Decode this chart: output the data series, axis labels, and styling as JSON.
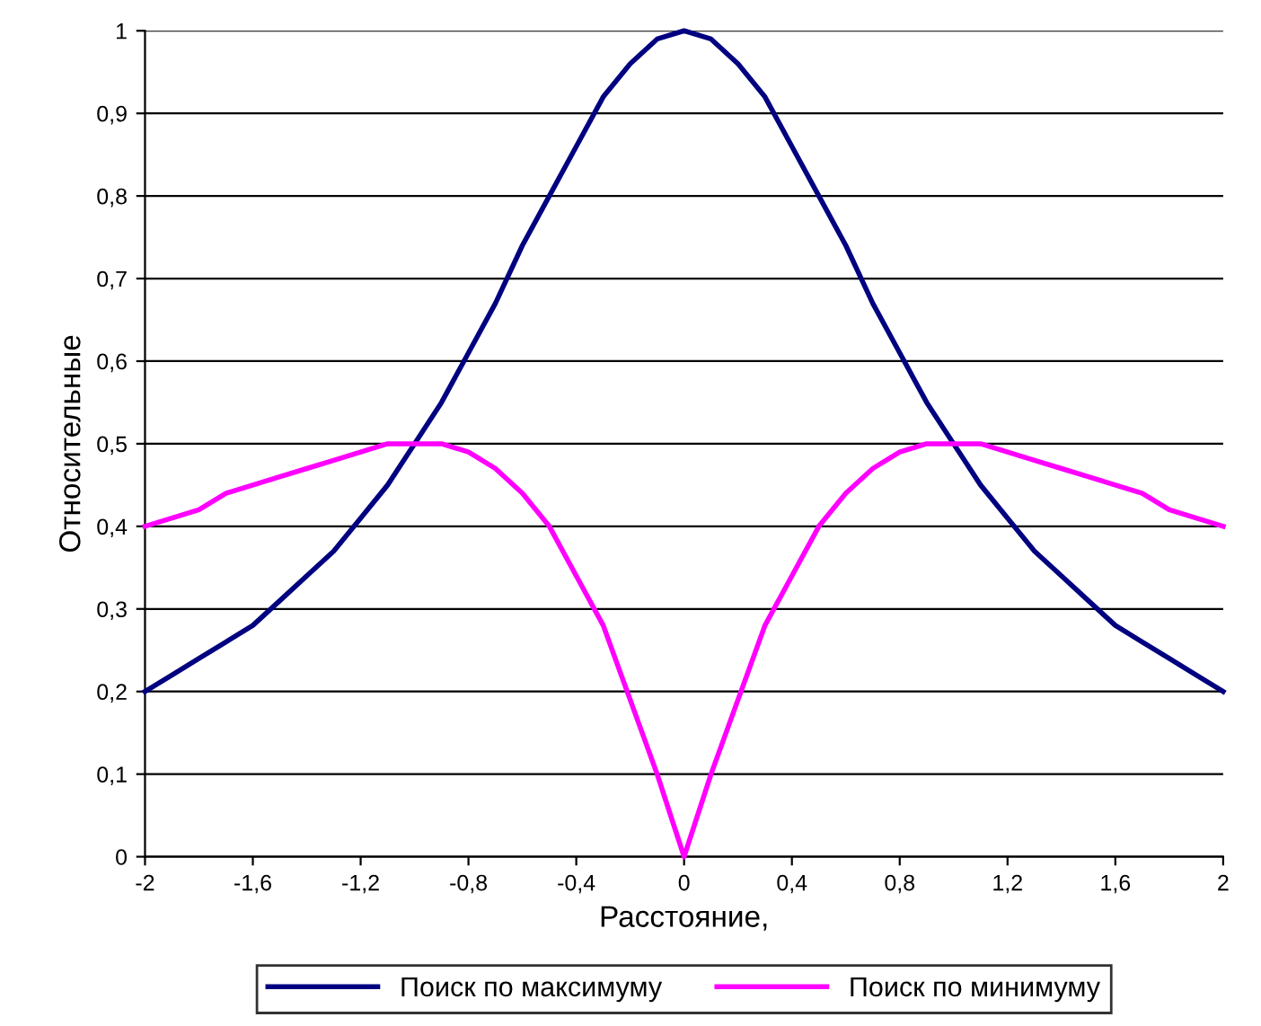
{
  "chart_data": {
    "type": "line",
    "xlabel": "Расстояние,",
    "ylabel": "Относительные",
    "x": [
      -2,
      -1.9,
      -1.8,
      -1.7,
      -1.6,
      -1.5,
      -1.4,
      -1.3,
      -1.2,
      -1.1,
      -1,
      -0.9,
      -0.8,
      -0.7,
      -0.6,
      -0.5,
      -0.4,
      -0.3,
      -0.2,
      -0.1,
      0,
      0.1,
      0.2,
      0.3,
      0.4,
      0.5,
      0.6,
      0.7,
      0.8,
      0.9,
      1,
      1.1,
      1.2,
      1.3,
      1.4,
      1.5,
      1.6,
      1.7,
      1.8,
      1.9,
      2
    ],
    "series": [
      {
        "name": "Поиск по максимуму",
        "color": "#000080",
        "values": [
          0.2,
          0.22,
          0.24,
          0.26,
          0.28,
          0.31,
          0.34,
          0.37,
          0.41,
          0.45,
          0.5,
          0.55,
          0.61,
          0.67,
          0.74,
          0.8,
          0.86,
          0.92,
          0.96,
          0.99,
          1,
          0.99,
          0.96,
          0.92,
          0.86,
          0.8,
          0.74,
          0.67,
          0.61,
          0.55,
          0.5,
          0.45,
          0.41,
          0.37,
          0.34,
          0.31,
          0.28,
          0.26,
          0.24,
          0.22,
          0.2
        ]
      },
      {
        "name": "Поиск по минимуму",
        "color": "#ff00ff",
        "values": [
          0.4,
          0.41,
          0.42,
          0.44,
          0.45,
          0.46,
          0.47,
          0.48,
          0.49,
          0.5,
          0.5,
          0.5,
          0.49,
          0.47,
          0.44,
          0.4,
          0.34,
          0.28,
          0.19,
          0.1,
          0,
          0.1,
          0.19,
          0.28,
          0.34,
          0.4,
          0.44,
          0.47,
          0.49,
          0.5,
          0.5,
          0.5,
          0.49,
          0.48,
          0.47,
          0.46,
          0.45,
          0.44,
          0.42,
          0.41,
          0.4
        ]
      }
    ],
    "xlim": [
      -2,
      2
    ],
    "xticks": [
      -2,
      {
        "value": -1.6,
        "label": "-1,6"
      },
      {
        "value": -1.2,
        "label": "-1,2"
      },
      {
        "value": -0.8,
        "label": "-0,8"
      },
      {
        "value": -0.4,
        "label": "-0,4"
      },
      0,
      {
        "value": 0.4,
        "label": "0,4"
      },
      {
        "value": 0.8,
        "label": "0,8"
      },
      {
        "value": 1.2,
        "label": "1,2"
      },
      {
        "value": 1.6,
        "label": "1,6"
      },
      2
    ],
    "ylim": [
      0,
      1
    ],
    "yticks": [
      0,
      {
        "value": 0.1,
        "label": "0,1"
      },
      {
        "value": 0.2,
        "label": "0,2"
      },
      {
        "value": 0.3,
        "label": "0,3"
      },
      {
        "value": 0.4,
        "label": "0,4"
      },
      {
        "value": 0.5,
        "label": "0,5"
      },
      {
        "value": 0.6,
        "label": "0,6"
      },
      {
        "value": 0.7,
        "label": "0,7"
      },
      {
        "value": 0.8,
        "label": "0,8"
      },
      {
        "value": 0.9,
        "label": "0,9"
      },
      1
    ],
    "grid": "y",
    "legend": "bottom",
    "marker": "none",
    "line_style": "solid"
  }
}
